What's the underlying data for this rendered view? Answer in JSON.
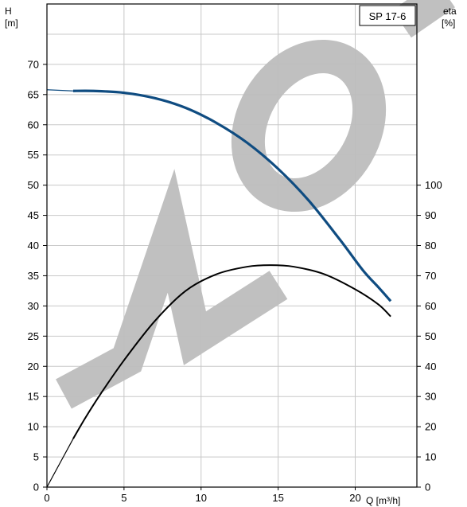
{
  "chart_data": {
    "type": "line",
    "title": "SP 17-6",
    "x_axis": {
      "label": "Q [m³/h]",
      "range": [
        0,
        24
      ],
      "ticks": [
        0,
        5,
        10,
        15,
        20
      ]
    },
    "y_axis_left": {
      "label_line1": "H",
      "label_line2": "[m]",
      "range": [
        0,
        80
      ],
      "ticks": [
        0,
        5,
        10,
        15,
        20,
        25,
        30,
        35,
        40,
        45,
        50,
        55,
        60,
        65,
        70
      ]
    },
    "y_axis_right": {
      "label_line1": "eta",
      "label_line2": "[%]",
      "range": [
        0,
        160
      ],
      "ticks": [
        0,
        10,
        20,
        30,
        40,
        50,
        60,
        70,
        80,
        90,
        100
      ]
    },
    "grid": true,
    "series": [
      {
        "key": "head",
        "axis": "left",
        "color": "#0f4c81",
        "x": [
          0,
          1.7,
          3,
          5,
          7,
          9,
          11,
          13,
          15,
          17,
          19,
          20.5,
          21.5,
          22.3
        ],
        "y": [
          65.8,
          65.6,
          65.6,
          65.3,
          64.4,
          62.8,
          60.3,
          57,
          52.7,
          47.4,
          41,
          35.9,
          33.1,
          30.8
        ]
      },
      {
        "key": "efficiency",
        "axis": "right",
        "color": "#000000",
        "x": [
          0,
          1.7,
          2.5,
          3.5,
          5,
          7,
          9,
          11,
          13,
          14.5,
          16,
          18,
          20,
          21.5,
          22.3
        ],
        "y": [
          0,
          16,
          23,
          31,
          42,
          55,
          65,
          70.5,
          73,
          73.5,
          73,
          70.5,
          65.5,
          60.5,
          56.5
        ]
      }
    ],
    "colors": {
      "head_curve": "#0f4c81",
      "efficiency_curve": "#000000",
      "grid": "#c8c8c8",
      "watermark": "#bdbdbd"
    }
  }
}
